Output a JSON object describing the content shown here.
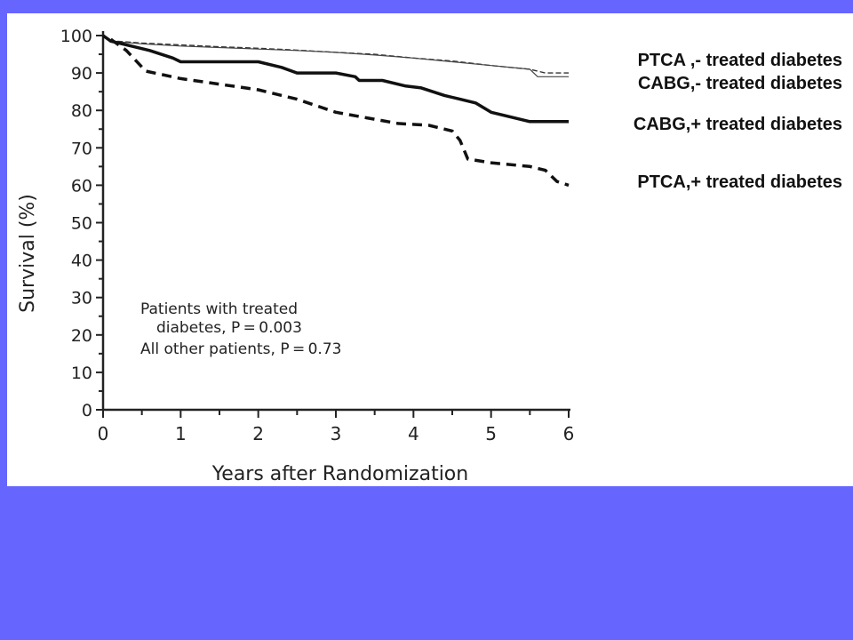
{
  "chart_data": {
    "type": "line",
    "xlabel": "Years after Randomization",
    "ylabel": "Survival (%)",
    "xlim": [
      0,
      6
    ],
    "ylim": [
      0,
      100
    ],
    "x_ticks": [
      "0",
      "1",
      "2",
      "3",
      "4",
      "5",
      "6"
    ],
    "y_ticks": [
      "0",
      "10",
      "20",
      "30",
      "40",
      "50",
      "60",
      "70",
      "80",
      "90",
      "100"
    ],
    "grid": false,
    "annotation": [
      "Patients with treated",
      "diabetes, P = 0.003",
      "All other patients, P = 0.73"
    ],
    "series": [
      {
        "name": "PTCA ,- treated diabetes",
        "style": "dashed-thin",
        "x": [
          0,
          0.1,
          0.5,
          1,
          1.5,
          2,
          2.5,
          3,
          3.5,
          4,
          4.5,
          5,
          5.5,
          5.7,
          6
        ],
        "y": [
          100,
          98.6,
          98,
          97.5,
          97,
          96.6,
          96.1,
          95.5,
          95,
          94,
          93.2,
          92,
          91,
          90,
          90
        ]
      },
      {
        "name": "CABG,- treated diabetes",
        "style": "solid-thin",
        "x": [
          0,
          0.1,
          0.5,
          1,
          1.5,
          2,
          2.5,
          3,
          3.5,
          4,
          4.5,
          5,
          5.5,
          5.6,
          6
        ],
        "y": [
          100,
          98.5,
          97.8,
          97.2,
          96.8,
          96.4,
          96,
          95.5,
          94.8,
          94,
          93,
          92,
          91,
          89,
          89
        ]
      },
      {
        "name": "CABG,+ treated diabetes",
        "style": "solid-thick",
        "x": [
          0,
          0.1,
          0.4,
          0.6,
          0.9,
          1,
          2,
          2.3,
          2.5,
          3,
          3.25,
          3.3,
          3.6,
          3.9,
          4.1,
          4.4,
          4.6,
          4.8,
          5,
          5.5,
          6
        ],
        "y": [
          100,
          98.5,
          97,
          96,
          94,
          93,
          93,
          91.5,
          90,
          90,
          89,
          88,
          88,
          86.5,
          86,
          84,
          83,
          82,
          79.5,
          77,
          77
        ]
      },
      {
        "name": "PTCA,+ treated diabetes",
        "style": "dashed-thick",
        "x": [
          0.1,
          0.3,
          0.55,
          1,
          1.5,
          2,
          2.5,
          3,
          3.4,
          3.8,
          4.2,
          4.5,
          4.6,
          4.7,
          5,
          5.5,
          5.7,
          5.85,
          6
        ],
        "y": [
          99,
          96,
          90.5,
          88.5,
          87,
          85.5,
          83,
          79.5,
          78,
          76.5,
          76,
          74.5,
          72,
          67,
          66,
          65,
          64,
          61,
          60
        ]
      }
    ]
  }
}
